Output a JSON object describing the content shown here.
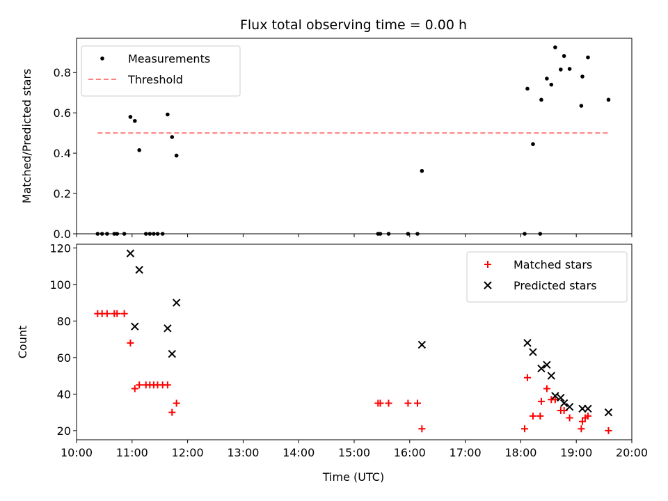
{
  "title": "Flux total observing time = 0.00 h",
  "xlabel": "Time (UTC)",
  "x_tick_labels": [
    "10:00",
    "11:00",
    "12:00",
    "13:00",
    "14:00",
    "15:00",
    "16:00",
    "17:00",
    "18:00",
    "19:00",
    "20:00"
  ],
  "chart_data": [
    {
      "type": "scatter",
      "ylabel": "Matched/Predicted stars",
      "xlim": [
        0,
        10
      ],
      "ylim": [
        0,
        0.97
      ],
      "x_unit": "hours after 10:00 UTC",
      "x_ticks": [
        0,
        1,
        2,
        3,
        4,
        5,
        6,
        7,
        8,
        9,
        10
      ],
      "y_ticks": [
        0.0,
        0.2,
        0.4,
        0.6,
        0.8
      ],
      "y_tick_labels": [
        "0.0",
        "0.2",
        "0.4",
        "0.6",
        "0.8"
      ],
      "legend_position": "upper-left",
      "series": [
        {
          "name": "Measurements",
          "marker": "dot",
          "color": "#000000",
          "points": [
            [
              0.38,
              0.0
            ],
            [
              0.46,
              0.0
            ],
            [
              0.55,
              0.0
            ],
            [
              0.68,
              0.0
            ],
            [
              0.73,
              0.0
            ],
            [
              0.86,
              0.0
            ],
            [
              0.97,
              0.58
            ],
            [
              1.05,
              0.56
            ],
            [
              1.13,
              0.415
            ],
            [
              1.25,
              0.0
            ],
            [
              1.32,
              0.0
            ],
            [
              1.39,
              0.0
            ],
            [
              1.46,
              0.0
            ],
            [
              1.55,
              0.0
            ],
            [
              1.64,
              0.592
            ],
            [
              1.72,
              0.48
            ],
            [
              1.8,
              0.388
            ],
            [
              5.43,
              0.0
            ],
            [
              5.47,
              0.0
            ],
            [
              5.62,
              0.0
            ],
            [
              5.97,
              0.0
            ],
            [
              6.14,
              0.0
            ],
            [
              6.22,
              0.312
            ],
            [
              8.07,
              0.0
            ],
            [
              8.12,
              0.72
            ],
            [
              8.22,
              0.445
            ],
            [
              8.35,
              0.0
            ],
            [
              8.37,
              0.665
            ],
            [
              8.47,
              0.77
            ],
            [
              8.55,
              0.74
            ],
            [
              8.62,
              0.925
            ],
            [
              8.72,
              0.815
            ],
            [
              8.78,
              0.882
            ],
            [
              8.88,
              0.818
            ],
            [
              9.09,
              0.635
            ],
            [
              9.11,
              0.78
            ],
            [
              9.21,
              0.875
            ],
            [
              9.58,
              0.665
            ]
          ]
        },
        {
          "name": "Threshold",
          "line": "dashed",
          "color": "#ff7f7f",
          "points": [
            [
              0.38,
              0.5
            ],
            [
              9.58,
              0.5
            ]
          ]
        }
      ]
    },
    {
      "type": "scatter",
      "ylabel": "Count",
      "xlim": [
        0,
        10
      ],
      "ylim": [
        15,
        122
      ],
      "x_unit": "hours after 10:00 UTC",
      "x_ticks": [
        0,
        1,
        2,
        3,
        4,
        5,
        6,
        7,
        8,
        9,
        10
      ],
      "y_ticks": [
        20,
        40,
        60,
        80,
        100,
        120
      ],
      "y_tick_labels": [
        "20",
        "40",
        "60",
        "80",
        "100",
        "120"
      ],
      "legend_position": "upper-right",
      "series": [
        {
          "name": "Matched stars",
          "marker": "plus",
          "color": "#ff0000",
          "points": [
            [
              0.38,
              84
            ],
            [
              0.46,
              84
            ],
            [
              0.55,
              84
            ],
            [
              0.68,
              84
            ],
            [
              0.73,
              84
            ],
            [
              0.86,
              84
            ],
            [
              0.97,
              68
            ],
            [
              1.05,
              43
            ],
            [
              1.13,
              45
            ],
            [
              1.25,
              45
            ],
            [
              1.32,
              45
            ],
            [
              1.39,
              45
            ],
            [
              1.46,
              45
            ],
            [
              1.55,
              45
            ],
            [
              1.64,
              45
            ],
            [
              1.72,
              30
            ],
            [
              1.8,
              35
            ],
            [
              5.43,
              35
            ],
            [
              5.47,
              35
            ],
            [
              5.62,
              35
            ],
            [
              5.97,
              35
            ],
            [
              6.14,
              35
            ],
            [
              6.22,
              21
            ],
            [
              8.07,
              21
            ],
            [
              8.12,
              49
            ],
            [
              8.22,
              28
            ],
            [
              8.35,
              28
            ],
            [
              8.37,
              36
            ],
            [
              8.47,
              43
            ],
            [
              8.55,
              37
            ],
            [
              8.62,
              37
            ],
            [
              8.72,
              31
            ],
            [
              8.78,
              31
            ],
            [
              8.88,
              27
            ],
            [
              9.09,
              21
            ],
            [
              9.11,
              25
            ],
            [
              9.16,
              27
            ],
            [
              9.21,
              28
            ],
            [
              9.58,
              20
            ]
          ]
        },
        {
          "name": "Predicted stars",
          "marker": "x",
          "color": "#000000",
          "points": [
            [
              0.97,
              117
            ],
            [
              1.05,
              77
            ],
            [
              1.13,
              108
            ],
            [
              1.64,
              76
            ],
            [
              1.72,
              62
            ],
            [
              1.8,
              90
            ],
            [
              6.22,
              67
            ],
            [
              8.12,
              68
            ],
            [
              8.22,
              63
            ],
            [
              8.37,
              54
            ],
            [
              8.47,
              56
            ],
            [
              8.55,
              50
            ],
            [
              8.62,
              39
            ],
            [
              8.72,
              38
            ],
            [
              8.78,
              35
            ],
            [
              8.88,
              33
            ],
            [
              9.11,
              32
            ],
            [
              9.21,
              32
            ],
            [
              9.58,
              30
            ]
          ]
        }
      ]
    }
  ]
}
